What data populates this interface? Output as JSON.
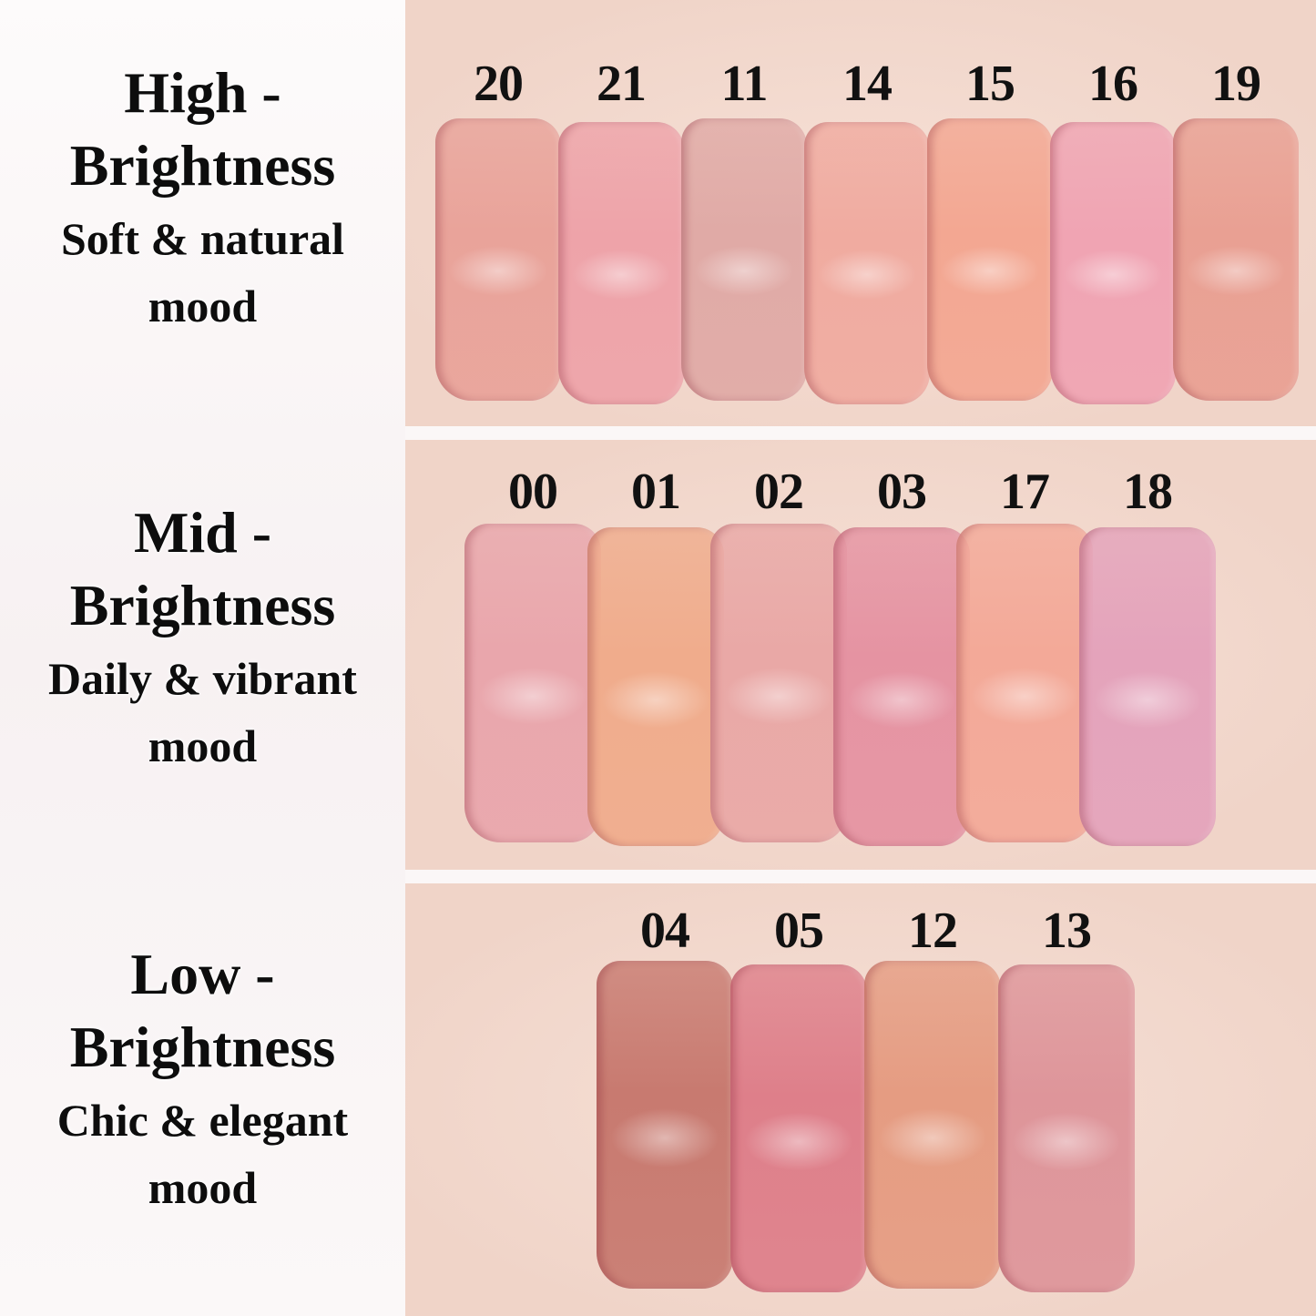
{
  "groups": [
    {
      "title_line1": "High -",
      "title_line2": "Brightness",
      "subtitle_line1": "Soft & natural",
      "subtitle_line2": "mood",
      "shades": [
        {
          "code": "20",
          "color": "#e9a39a"
        },
        {
          "code": "21",
          "color": "#eea3a9"
        },
        {
          "code": "11",
          "color": "#e0aaa6"
        },
        {
          "code": "14",
          "color": "#f0aba0"
        },
        {
          "code": "15",
          "color": "#f3a792"
        },
        {
          "code": "16",
          "color": "#f0a4b3"
        },
        {
          "code": "19",
          "color": "#e9a093"
        }
      ]
    },
    {
      "title_line1": "Mid -",
      "title_line2": "Brightness",
      "subtitle_line1": "Daily & vibrant",
      "subtitle_line2": "mood",
      "shades": [
        {
          "code": "00",
          "color": "#e9a6ac"
        },
        {
          "code": "01",
          "color": "#f0ac8c"
        },
        {
          "code": "02",
          "color": "#e9a8a6"
        },
        {
          "code": "03",
          "color": "#e593a2"
        },
        {
          "code": "17",
          "color": "#f3a998"
        },
        {
          "code": "18",
          "color": "#e4a3bb"
        }
      ]
    },
    {
      "title_line1": "Low -",
      "title_line2": "Brightness",
      "subtitle_line1": "Chic & elegant",
      "subtitle_line2": "mood",
      "shades": [
        {
          "code": "04",
          "color": "#c87a70"
        },
        {
          "code": "05",
          "color": "#de7f8a"
        },
        {
          "code": "12",
          "color": "#e59c82"
        },
        {
          "code": "13",
          "color": "#de959a"
        }
      ]
    }
  ]
}
